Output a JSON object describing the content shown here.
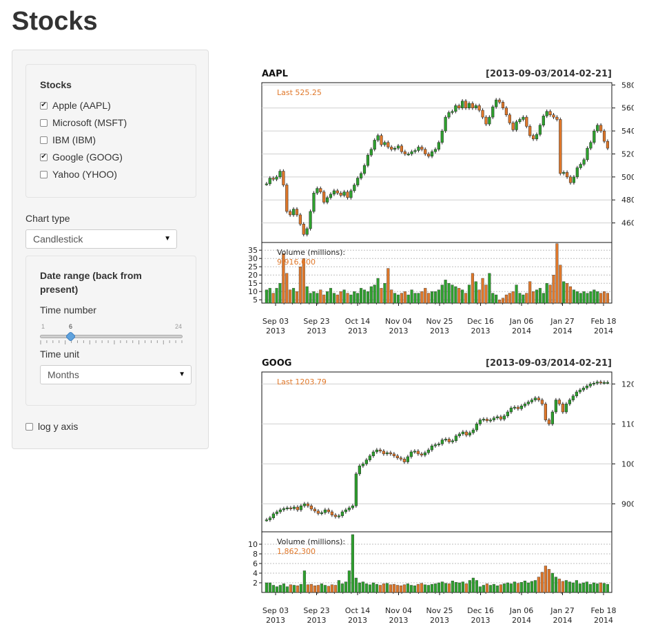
{
  "page": {
    "title": "Stocks"
  },
  "sidebar": {
    "stocks": {
      "title": "Stocks",
      "options": [
        {
          "label": "Apple (AAPL)",
          "checked": true
        },
        {
          "label": "Microsoft (MSFT)",
          "checked": false
        },
        {
          "label": "IBM (IBM)",
          "checked": false
        },
        {
          "label": "Google (GOOG)",
          "checked": true
        },
        {
          "label": "Yahoo (YHOO)",
          "checked": false
        }
      ]
    },
    "chart_type": {
      "label": "Chart type",
      "value": "Candlestick"
    },
    "date_range": {
      "title": "Date range (back from present)",
      "time_number": {
        "label": "Time number",
        "min": "1",
        "max": "24",
        "value": "6"
      },
      "time_unit": {
        "label": "Time unit",
        "value": "Months"
      }
    },
    "log_y": {
      "label": "log y axis",
      "checked": false
    }
  },
  "chart_data": [
    {
      "type": "candlestick",
      "ticker": "AAPL",
      "range_label": "[2013-09-03/2014-02-21]",
      "last_label": "Last 525.25",
      "volume_label": "Volume (millions):",
      "volume_last": "9,916,600",
      "price_ticks": [
        "580",
        "560",
        "540",
        "520",
        "500",
        "480",
        "460"
      ],
      "price_range": [
        443,
        582
      ],
      "volume_ticks": [
        "35",
        "30",
        "25",
        "20",
        "15",
        "10",
        "5"
      ],
      "volume_range": [
        3,
        38
      ],
      "x_ticks": [
        [
          "Sep 03",
          "2013"
        ],
        [
          "Sep 23",
          "2013"
        ],
        [
          "Oct 14",
          "2013"
        ],
        [
          "Nov 04",
          "2013"
        ],
        [
          "Nov 25",
          "2013"
        ],
        [
          "Dec 16",
          "2013"
        ],
        [
          "Jan 06",
          "2014"
        ],
        [
          "Jan 27",
          "2014"
        ],
        [
          "Feb 18",
          "2014"
        ]
      ],
      "close": [
        494,
        499,
        498,
        500,
        505,
        493,
        470,
        467,
        472,
        467,
        459,
        450,
        455,
        470,
        486,
        490,
        487,
        478,
        482,
        485,
        488,
        486,
        484,
        487,
        482,
        488,
        493,
        499,
        503,
        510,
        519,
        524,
        532,
        536,
        528,
        530,
        526,
        524,
        525,
        527,
        522,
        520,
        520,
        522,
        523,
        526,
        524,
        520,
        518,
        522,
        524,
        530,
        540,
        552,
        556,
        557,
        562,
        560,
        566,
        560,
        564,
        560,
        562,
        558,
        552,
        546,
        552,
        561,
        567,
        565,
        560,
        554,
        547,
        541,
        548,
        550,
        552,
        544,
        536,
        533,
        537,
        545,
        553,
        557,
        554,
        552,
        550,
        503,
        504,
        500,
        495,
        500,
        508,
        511,
        515,
        525,
        530,
        540,
        545,
        540,
        531,
        525
      ],
      "volume": [
        11,
        12,
        9,
        12,
        15,
        33,
        21,
        11,
        12,
        10,
        25,
        30,
        13,
        9,
        10,
        9,
        11,
        8,
        10,
        12,
        9,
        8,
        10,
        11,
        9,
        8,
        10,
        9,
        12,
        11,
        10,
        13,
        14,
        18,
        12,
        15,
        24,
        11,
        9,
        8,
        9,
        10,
        8,
        11,
        9,
        9,
        10,
        12,
        9,
        10,
        10,
        11,
        14,
        17,
        15,
        14,
        13,
        12,
        11,
        9,
        14,
        21,
        16,
        11,
        18,
        14,
        21,
        9,
        8,
        5,
        6,
        8,
        9,
        10,
        14,
        9,
        8,
        9,
        16,
        10,
        11,
        12,
        9,
        15,
        14,
        20,
        39,
        26,
        16,
        15,
        13,
        11,
        10,
        9,
        10,
        9,
        10,
        11,
        10,
        9,
        10,
        9
      ]
    },
    {
      "type": "candlestick",
      "ticker": "GOOG",
      "range_label": "[2013-09-03/2014-02-21]",
      "last_label": "Last 1203.79",
      "volume_label": "Volume (millions):",
      "volume_last": "1,862,300",
      "price_ticks": [
        "1200",
        "1100",
        "1000",
        "900"
      ],
      "price_range": [
        830,
        1230
      ],
      "volume_ticks": [
        "10",
        "8",
        "6",
        "4",
        "2"
      ],
      "volume_range": [
        0,
        12
      ],
      "x_ticks": [
        [
          "Sep 03",
          "2013"
        ],
        [
          "Sep 23",
          "2013"
        ],
        [
          "Oct 14",
          "2013"
        ],
        [
          "Nov 04",
          "2013"
        ],
        [
          "Nov 25",
          "2013"
        ],
        [
          "Dec 16",
          "2013"
        ],
        [
          "Jan 06",
          "2014"
        ],
        [
          "Jan 27",
          "2014"
        ],
        [
          "Feb 18",
          "2014"
        ]
      ],
      "close": [
        860,
        865,
        875,
        880,
        885,
        888,
        890,
        888,
        892,
        885,
        895,
        900,
        895,
        887,
        882,
        876,
        878,
        885,
        880,
        872,
        868,
        870,
        880,
        885,
        890,
        895,
        975,
        995,
        1000,
        1010,
        1020,
        1030,
        1035,
        1032,
        1025,
        1028,
        1025,
        1020,
        1015,
        1012,
        1005,
        1018,
        1030,
        1032,
        1025,
        1022,
        1028,
        1035,
        1045,
        1048,
        1050,
        1060,
        1062,
        1055,
        1058,
        1070,
        1075,
        1080,
        1072,
        1078,
        1085,
        1100,
        1110,
        1112,
        1108,
        1110,
        1115,
        1118,
        1112,
        1120,
        1130,
        1140,
        1142,
        1138,
        1145,
        1150,
        1155,
        1160,
        1165,
        1160,
        1150,
        1110,
        1100,
        1130,
        1160,
        1150,
        1130,
        1150,
        1160,
        1170,
        1180,
        1185,
        1190,
        1195,
        1200,
        1202,
        1205,
        1203,
        1204,
        1204
      ],
      "volume": [
        2,
        2,
        1.5,
        1.2,
        1.5,
        1.8,
        1.2,
        1.6,
        1.5,
        1.4,
        1.7,
        4.5,
        1.6,
        1.7,
        1.4,
        1.5,
        1.8,
        1.5,
        1.3,
        1.6,
        1.5,
        2.5,
        1.8,
        2.2,
        4.5,
        12,
        3,
        2,
        2.2,
        1.8,
        1.6,
        2,
        1.7,
        1.5,
        1.8,
        1.9,
        1.6,
        1.7,
        1.5,
        1.4,
        1.6,
        1.8,
        1.5,
        1.4,
        1.7,
        1.9,
        1.6,
        1.5,
        1.7,
        1.8,
        2,
        2.2,
        1.9,
        1.8,
        2.4,
        2.1,
        2,
        2.2,
        1.8,
        2.5,
        3,
        2.5,
        1.2,
        1.5,
        1.8,
        1.5,
        1.7,
        1.4,
        1.6,
        1.8,
        2,
        1.8,
        2.2,
        1.9,
        2.1,
        2.4,
        2,
        2.3,
        2.5,
        3.2,
        4.2,
        5.5,
        4.8,
        4,
        3.2,
        2.8,
        2.3,
        2.5,
        2.2,
        2,
        2.5,
        1.8,
        2,
        2.2,
        1.7,
        2,
        1.8,
        2,
        1.9,
        1.7
      ]
    }
  ]
}
